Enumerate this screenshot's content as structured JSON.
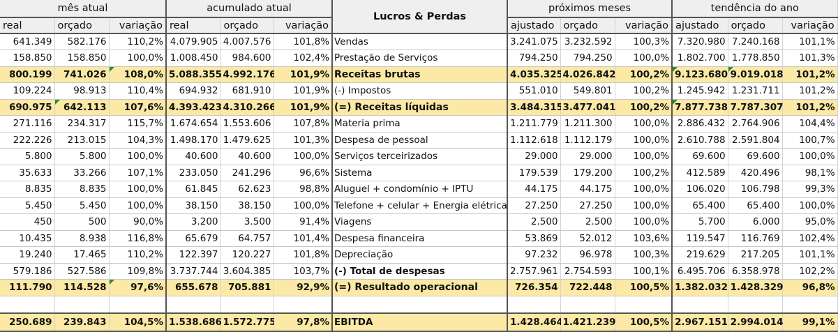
{
  "headers": {
    "group_mes_atual": "mês atual",
    "group_acumulado": "acumulado atual",
    "group_proximos": "próximos meses",
    "group_tendencia": "tendência do ano",
    "center_title": "Lucros & Perdas",
    "sub_real": "real",
    "sub_orcado": "orçado",
    "sub_variacao": "variação",
    "sub_ajustado": "ajustado"
  },
  "rows": [
    {
      "label": "Vendas",
      "highlight": false,
      "mes": [
        "641.349",
        "582.176",
        "110,2%"
      ],
      "acum": [
        "4.079.905",
        "4.007.576",
        "101,8%"
      ],
      "prox": [
        "3.241.075",
        "3.232.592",
        "100,3%"
      ],
      "tend": [
        "7.320.980",
        "7.240.168",
        "101,1%"
      ]
    },
    {
      "label": "Prestação de Serviços",
      "highlight": false,
      "mes": [
        "158.850",
        "158.850",
        "100,0%"
      ],
      "acum": [
        "1.008.450",
        "984.600",
        "102,4%"
      ],
      "prox": [
        "794.250",
        "794.250",
        "100,0%"
      ],
      "tend": [
        "1.802.700",
        "1.778.850",
        "101,3%"
      ]
    },
    {
      "label": "Receitas brutas",
      "highlight": true,
      "mes": [
        "800.199",
        "741.026",
        "108,0%"
      ],
      "acum": [
        "5.088.355",
        "4.992.176",
        "101,9%"
      ],
      "prox": [
        "4.035.325",
        "4.026.842",
        "100,2%"
      ],
      "tend": [
        "9.123.680",
        "9.019.018",
        "101,2%"
      ]
    },
    {
      "label": "(-) Impostos",
      "highlight": false,
      "mes": [
        "109.224",
        "98.913",
        "110,4%"
      ],
      "acum": [
        "694.932",
        "681.910",
        "101,9%"
      ],
      "prox": [
        "551.010",
        "549.801",
        "100,2%"
      ],
      "tend": [
        "1.245.942",
        "1.231.711",
        "101,2%"
      ]
    },
    {
      "label": "(=) Receitas líquidas",
      "highlight": true,
      "mes": [
        "690.975",
        "642.113",
        "107,6%"
      ],
      "acum": [
        "4.393.423",
        "4.310.266",
        "101,9%"
      ],
      "prox": [
        "3.484.315",
        "3.477.041",
        "100,2%"
      ],
      "tend": [
        "7.877.738",
        "7.787.307",
        "101,2%"
      ]
    },
    {
      "label": "Materia prima",
      "highlight": false,
      "mes": [
        "271.116",
        "234.317",
        "115,7%"
      ],
      "acum": [
        "1.674.654",
        "1.553.606",
        "107,8%"
      ],
      "prox": [
        "1.211.779",
        "1.211.300",
        "100,0%"
      ],
      "tend": [
        "2.886.432",
        "2.764.906",
        "104,4%"
      ]
    },
    {
      "label": "Despesa de pessoal",
      "highlight": false,
      "mes": [
        "222.226",
        "213.015",
        "104,3%"
      ],
      "acum": [
        "1.498.170",
        "1.479.625",
        "101,3%"
      ],
      "prox": [
        "1.112.618",
        "1.112.179",
        "100,0%"
      ],
      "tend": [
        "2.610.788",
        "2.591.804",
        "100,7%"
      ]
    },
    {
      "label": "Serviços terceirizados",
      "highlight": false,
      "mes": [
        "5.800",
        "5.800",
        "100,0%"
      ],
      "acum": [
        "40.600",
        "40.600",
        "100,0%"
      ],
      "prox": [
        "29.000",
        "29.000",
        "100,0%"
      ],
      "tend": [
        "69.600",
        "69.600",
        "100,0%"
      ]
    },
    {
      "label": "Sistema",
      "highlight": false,
      "mes": [
        "35.633",
        "33.266",
        "107,1%"
      ],
      "acum": [
        "233.050",
        "241.296",
        "96,6%"
      ],
      "prox": [
        "179.539",
        "179.200",
        "100,2%"
      ],
      "tend": [
        "412.589",
        "420.496",
        "98,1%"
      ]
    },
    {
      "label": "Aluguel + condomínio + IPTU",
      "highlight": false,
      "mes": [
        "8.835",
        "8.835",
        "100,0%"
      ],
      "acum": [
        "61.845",
        "62.623",
        "98,8%"
      ],
      "prox": [
        "44.175",
        "44.175",
        "100,0%"
      ],
      "tend": [
        "106.020",
        "106.798",
        "99,3%"
      ]
    },
    {
      "label": "Telefone + celular + Energia elétrica",
      "highlight": false,
      "mes": [
        "5.450",
        "5.450",
        "100,0%"
      ],
      "acum": [
        "38.150",
        "38.150",
        "100,0%"
      ],
      "prox": [
        "27.250",
        "27.250",
        "100,0%"
      ],
      "tend": [
        "65.400",
        "65.400",
        "100,0%"
      ]
    },
    {
      "label": "Viagens",
      "highlight": false,
      "mes": [
        "450",
        "500",
        "90,0%"
      ],
      "acum": [
        "3.200",
        "3.500",
        "91,4%"
      ],
      "prox": [
        "2.500",
        "2.500",
        "100,0%"
      ],
      "tend": [
        "5.700",
        "6.000",
        "95,0%"
      ]
    },
    {
      "label": "Despesa financeira",
      "highlight": false,
      "mes": [
        "10.435",
        "8.938",
        "116,8%"
      ],
      "acum": [
        "65.679",
        "64.757",
        "101,4%"
      ],
      "prox": [
        "53.869",
        "52.012",
        "103,6%"
      ],
      "tend": [
        "119.547",
        "116.769",
        "102,4%"
      ]
    },
    {
      "label": "Depreciação",
      "highlight": false,
      "mes": [
        "19.240",
        "17.465",
        "110,2%"
      ],
      "acum": [
        "122.397",
        "120.227",
        "101,8%"
      ],
      "prox": [
        "97.232",
        "96.978",
        "100,3%"
      ],
      "tend": [
        "219.629",
        "217.205",
        "101,1%"
      ]
    },
    {
      "label": "(-) Total de despesas",
      "highlight": false,
      "bold_label": true,
      "mes": [
        "579.186",
        "527.586",
        "109,8%"
      ],
      "acum": [
        "3.737.744",
        "3.604.385",
        "103,7%"
      ],
      "prox": [
        "2.757.961",
        "2.754.593",
        "100,1%"
      ],
      "tend": [
        "6.495.706",
        "6.358.978",
        "102,2%"
      ]
    },
    {
      "label": "(=) Resultado operacional",
      "highlight": true,
      "mes": [
        "111.790",
        "114.528",
        "97,6%"
      ],
      "acum": [
        "655.678",
        "705.881",
        "92,9%"
      ],
      "prox": [
        "726.354",
        "722.448",
        "100,5%"
      ],
      "tend": [
        "1.382.032",
        "1.428.329",
        "96,8%"
      ]
    }
  ],
  "ebitda": {
    "label": "EBITDA",
    "mes": [
      "250.689",
      "239.843",
      "104,5%"
    ],
    "acum": [
      "1.538.686",
      "1.572.775",
      "97,8%"
    ],
    "prox": [
      "1.428.464",
      "1.421.239",
      "100,5%"
    ],
    "tend": [
      "2.967.151",
      "2.994.014",
      "99,1%"
    ]
  }
}
